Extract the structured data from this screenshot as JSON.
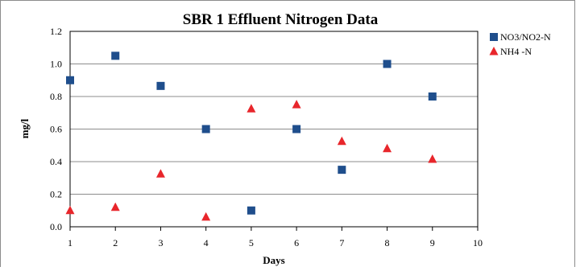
{
  "chart_data": {
    "type": "scatter",
    "title": "SBR 1  Effluent Nitrogen Data",
    "xlabel": "Days",
    "ylabel": "mg/l",
    "xlim": [
      1,
      10
    ],
    "ylim": [
      0,
      1.2
    ],
    "xticks": [
      "1",
      "2",
      "3",
      "4",
      "5",
      "6",
      "7",
      "8",
      "9",
      "10"
    ],
    "yticks": [
      "0.0",
      "0.2",
      "0.4",
      "0.6",
      "0.8",
      "1.0",
      "1.2"
    ],
    "grid": "horizontal",
    "legend_position": "right",
    "series": [
      {
        "name": "NO3/NO2-N",
        "marker": "square",
        "color": "#1F4E8C",
        "points": [
          {
            "x": 1,
            "y": 0.9
          },
          {
            "x": 2,
            "y": 1.05
          },
          {
            "x": 3,
            "y": 0.865
          },
          {
            "x": 4,
            "y": 0.6
          },
          {
            "x": 5,
            "y": 0.1
          },
          {
            "x": 6,
            "y": 0.6
          },
          {
            "x": 7,
            "y": 0.35
          },
          {
            "x": 8,
            "y": 1.0
          },
          {
            "x": 9,
            "y": 0.8
          }
        ]
      },
      {
        "name": "NH4 -N",
        "marker": "triangle",
        "color": "#E8262B",
        "points": [
          {
            "x": 1,
            "y": 0.1
          },
          {
            "x": 2,
            "y": 0.12
          },
          {
            "x": 3,
            "y": 0.325
          },
          {
            "x": 4,
            "y": 0.06
          },
          {
            "x": 5,
            "y": 0.725
          },
          {
            "x": 6,
            "y": 0.75
          },
          {
            "x": 7,
            "y": 0.525
          },
          {
            "x": 8,
            "y": 0.48
          },
          {
            "x": 9,
            "y": 0.415
          }
        ]
      }
    ]
  }
}
